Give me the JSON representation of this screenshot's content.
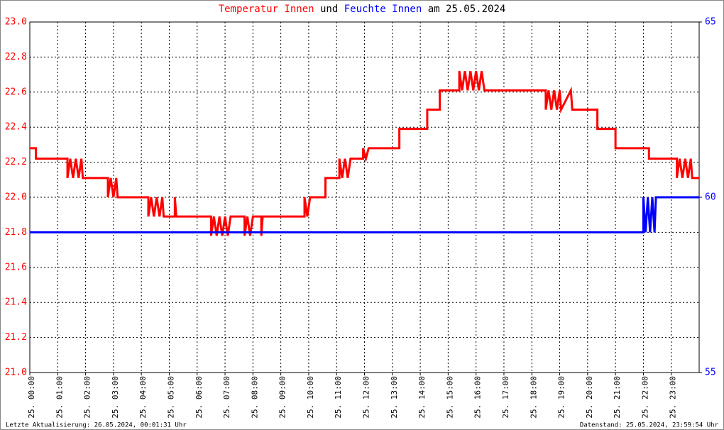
{
  "chart_data": {
    "type": "line",
    "title_connector": "und",
    "title_suffix": "am 25.05.2024",
    "footer_left": "Letzte Aktualisierung: 26.05.2024, 00:01:31 Uhr",
    "footer_right": "Datenstand: 25.05.2024, 23:59:54 Uhr",
    "xlim": [
      0,
      24
    ],
    "xticks": [
      {
        "value": 0,
        "label": "25. 00:00"
      },
      {
        "value": 1,
        "label": "25. 01:00"
      },
      {
        "value": 2,
        "label": "25. 02:00"
      },
      {
        "value": 3,
        "label": "25. 03:00"
      },
      {
        "value": 4,
        "label": "25. 04:00"
      },
      {
        "value": 5,
        "label": "25. 05:00"
      },
      {
        "value": 6,
        "label": "25. 06:00"
      },
      {
        "value": 7,
        "label": "25. 07:00"
      },
      {
        "value": 8,
        "label": "25. 08:00"
      },
      {
        "value": 9,
        "label": "25. 09:00"
      },
      {
        "value": 10,
        "label": "25. 10:00"
      },
      {
        "value": 11,
        "label": "25. 11:00"
      },
      {
        "value": 12,
        "label": "25. 12:00"
      },
      {
        "value": 13,
        "label": "25. 13:00"
      },
      {
        "value": 14,
        "label": "25. 14:00"
      },
      {
        "value": 15,
        "label": "25. 15:00"
      },
      {
        "value": 16,
        "label": "25. 16:00"
      },
      {
        "value": 17,
        "label": "25. 17:00"
      },
      {
        "value": 18,
        "label": "25. 18:00"
      },
      {
        "value": 19,
        "label": "25. 19:00"
      },
      {
        "value": 20,
        "label": "25. 20:00"
      },
      {
        "value": 21,
        "label": "25. 21:00"
      },
      {
        "value": 22,
        "label": "25. 22:00"
      },
      {
        "value": 23,
        "label": "25. 23:00"
      }
    ],
    "ylim": [
      21.0,
      23.0
    ],
    "yticks": [
      {
        "value": 21.0,
        "label": "21.0"
      },
      21.2,
      21.4,
      21.6,
      21.8,
      {
        "value": 22.0,
        "label": "22.0"
      },
      22.2,
      22.4,
      22.6,
      22.8,
      {
        "value": 23.0,
        "label": "23.0"
      }
    ],
    "y2lim": [
      55,
      65
    ],
    "y2ticks": [
      55,
      60,
      65
    ],
    "grid": true,
    "series": [
      {
        "name": "Temperatur Innen",
        "color": "#ff0000",
        "x": [
          0,
          0.22,
          0.22,
          1.35,
          1.35,
          1.45,
          1.55,
          1.65,
          1.75,
          1.85,
          1.9,
          2.8,
          2.8,
          2.9,
          3.0,
          3.1,
          3.15,
          4.25,
          4.25,
          4.35,
          4.45,
          4.55,
          4.65,
          4.75,
          4.8,
          5.2,
          5.2,
          5.25,
          6.5,
          6.5,
          6.6,
          6.7,
          6.8,
          6.9,
          7.0,
          7.1,
          7.2,
          7.7,
          7.7,
          7.8,
          7.9,
          8.0,
          8.3,
          8.3,
          8.35,
          9.85,
          9.85,
          9.95,
          10.05,
          10.6,
          10.6,
          11.1,
          11.1,
          11.2,
          11.3,
          11.4,
          11.5,
          11.95,
          11.95,
          12.05,
          12.15,
          13.25,
          13.25,
          14.25,
          14.25,
          14.7,
          14.7,
          15.4,
          15.4,
          15.5,
          15.6,
          15.7,
          15.8,
          15.9,
          16.0,
          16.1,
          16.2,
          16.3,
          18.5,
          18.5,
          18.6,
          18.7,
          18.8,
          18.9,
          19.0,
          19.05,
          19.4,
          19.45,
          20.35,
          20.35,
          21.0,
          21.0,
          22.2,
          22.2,
          23.2,
          23.2,
          23.3,
          23.4,
          23.5,
          23.6,
          23.7,
          23.75,
          24
        ],
        "values": [
          22.28,
          22.28,
          22.22,
          22.22,
          22.11,
          22.22,
          22.11,
          22.22,
          22.11,
          22.22,
          22.11,
          22.11,
          22.0,
          22.11,
          22.0,
          22.11,
          22.0,
          22.0,
          21.89,
          22.0,
          21.89,
          22.0,
          21.89,
          22.0,
          21.89,
          21.89,
          22.0,
          21.89,
          21.89,
          21.78,
          21.89,
          21.78,
          21.89,
          21.78,
          21.89,
          21.78,
          21.89,
          21.89,
          21.78,
          21.89,
          21.78,
          21.89,
          21.89,
          21.78,
          21.89,
          21.89,
          22.0,
          21.89,
          22.0,
          22.0,
          22.11,
          22.11,
          22.22,
          22.11,
          22.22,
          22.11,
          22.22,
          22.22,
          22.28,
          22.22,
          22.28,
          22.28,
          22.39,
          22.39,
          22.5,
          22.5,
          22.61,
          22.61,
          22.72,
          22.61,
          22.72,
          22.61,
          22.72,
          22.61,
          22.72,
          22.61,
          22.72,
          22.61,
          22.61,
          22.5,
          22.61,
          22.5,
          22.61,
          22.5,
          22.61,
          22.5,
          22.61,
          22.5,
          22.5,
          22.39,
          22.39,
          22.28,
          22.28,
          22.22,
          22.22,
          22.11,
          22.22,
          22.11,
          22.22,
          22.11,
          22.22,
          22.11,
          22.11
        ]
      },
      {
        "name": "Feuchte Innen",
        "color": "#0000ff",
        "axis": "y2",
        "x": [
          0,
          22.0,
          22.0,
          22.08,
          22.16,
          22.24,
          22.32,
          22.4,
          22.45,
          24
        ],
        "values": [
          59,
          59,
          60,
          59,
          60,
          59,
          60,
          59,
          60,
          60
        ]
      }
    ]
  }
}
